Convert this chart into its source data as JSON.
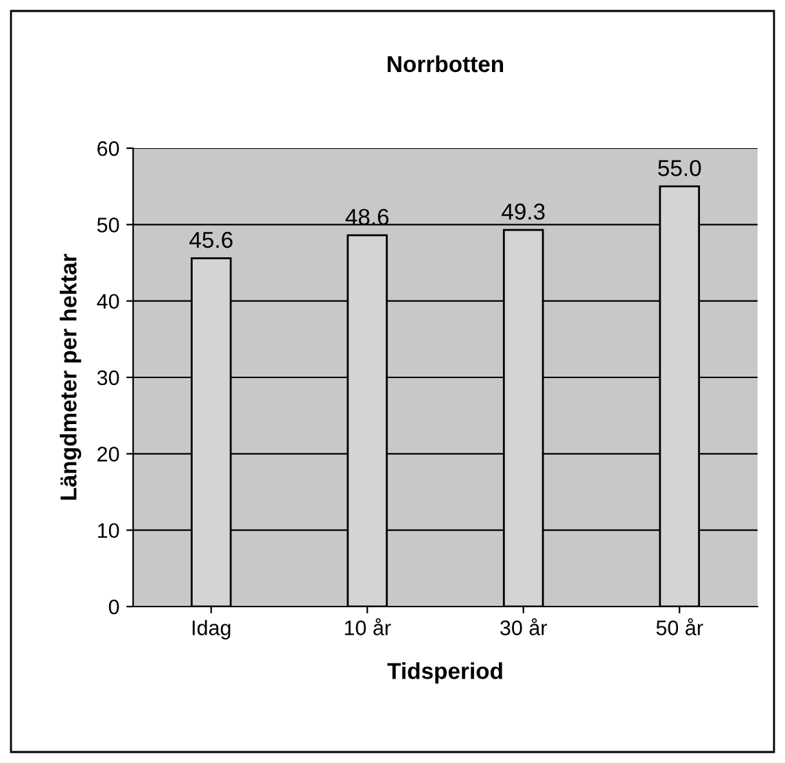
{
  "chart_data": {
    "type": "bar",
    "title": "Norrbotten",
    "xlabel": "Tidsperiod",
    "ylabel": "Längdmeter per hektar",
    "categories": [
      "Idag",
      "10 år",
      "30 år",
      "50 år"
    ],
    "values": [
      45.6,
      48.6,
      49.3,
      55.0
    ],
    "value_labels": [
      "45.6",
      "48.6",
      "49.3",
      "55.0"
    ],
    "color": "#d4d4d4",
    "ylim": [
      0,
      60
    ],
    "yticks": [
      0,
      10,
      20,
      30,
      40,
      50,
      60
    ],
    "grid": "y",
    "legend": false
  }
}
